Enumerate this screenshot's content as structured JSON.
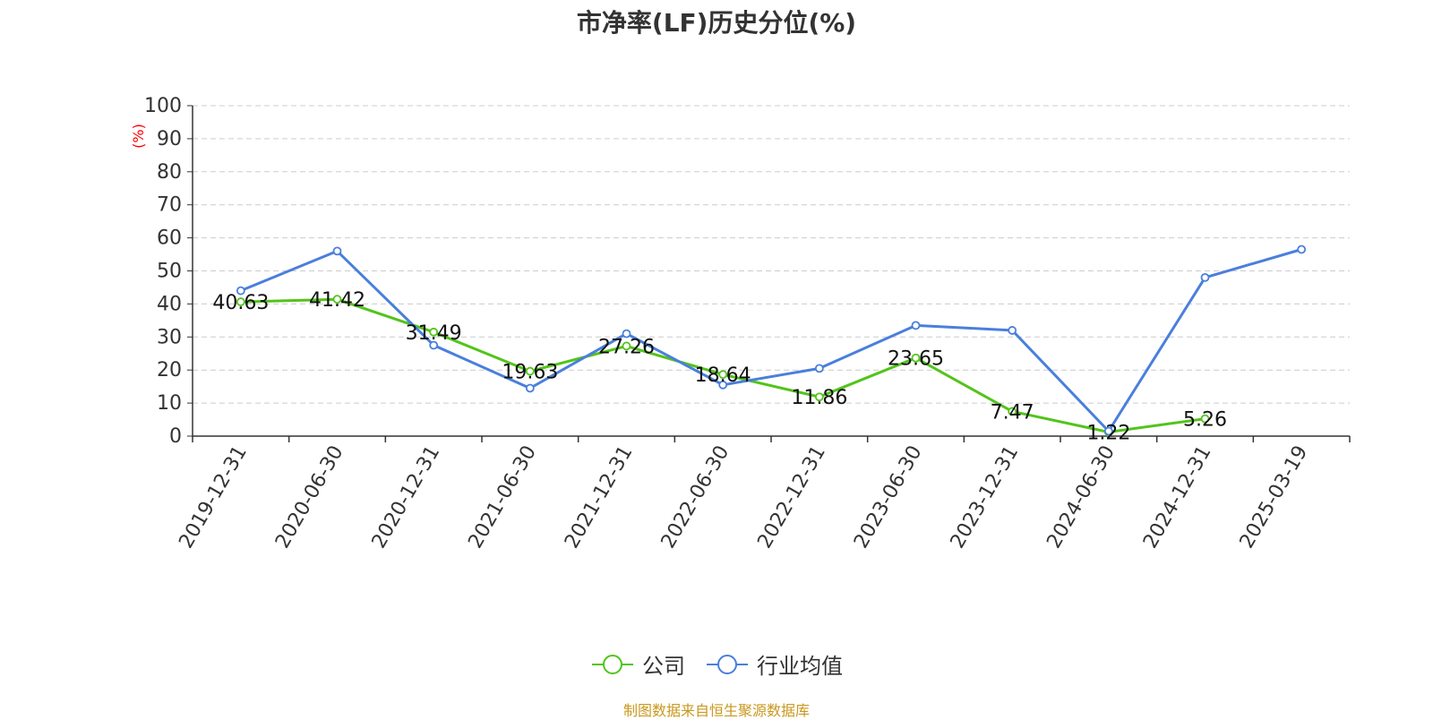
{
  "chart_data": {
    "type": "line",
    "title": "市净率(LF)历史分位(%)",
    "ylabel": "(%)",
    "ylim": [
      0,
      100
    ],
    "yticks": [
      0,
      10,
      20,
      30,
      40,
      50,
      60,
      70,
      80,
      90,
      100
    ],
    "grid": true,
    "legend_position": "bottom",
    "categories": [
      "2019-12-31",
      "2020-06-30",
      "2020-12-31",
      "2021-06-30",
      "2021-12-31",
      "2022-06-30",
      "2022-12-31",
      "2023-06-30",
      "2023-12-31",
      "2024-06-30",
      "2024-12-31",
      "2025-03-19"
    ],
    "series": [
      {
        "name": "公司",
        "color": "#52c41a",
        "values": [
          40.63,
          41.42,
          31.49,
          19.63,
          27.26,
          18.64,
          11.86,
          23.65,
          7.47,
          1.22,
          5.26,
          null
        ],
        "labels": [
          "40.63",
          "41.42",
          "31.49",
          "19.63",
          "27.26",
          "18.64",
          "11.86",
          "23.65",
          "7.47",
          "1.22",
          "5.26",
          null
        ]
      },
      {
        "name": "行业均值",
        "color": "#4a7fdc",
        "values": [
          44.0,
          56.0,
          27.5,
          14.5,
          31.0,
          15.5,
          20.5,
          33.5,
          32.0,
          1.5,
          48.0,
          56.5
        ]
      }
    ]
  },
  "source_note": "制图数据来自恒生聚源数据库"
}
